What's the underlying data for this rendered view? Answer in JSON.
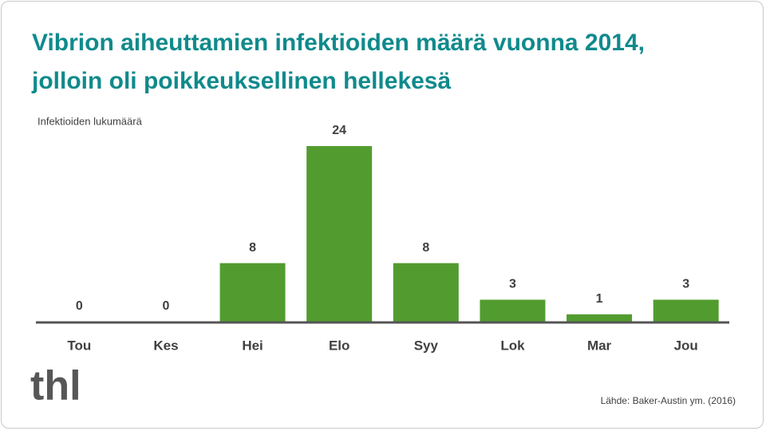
{
  "chart_data": {
    "type": "bar",
    "title": "Vibrion aiheuttamien infektioiden määrä vuonna 2014, jolloin oli poikkeuksellinen hellekesä",
    "y_label": "Infektioiden lukumäärä",
    "categories": [
      "Tou",
      "Kes",
      "Hei",
      "Elo",
      "Syy",
      "Lok",
      "Mar",
      "Jou"
    ],
    "values": [
      0,
      0,
      8,
      24,
      8,
      3,
      1,
      3
    ],
    "color": "#529c2f",
    "source": "Lähde: Baker-Austin  ym. (2016)",
    "logo": "thl"
  }
}
